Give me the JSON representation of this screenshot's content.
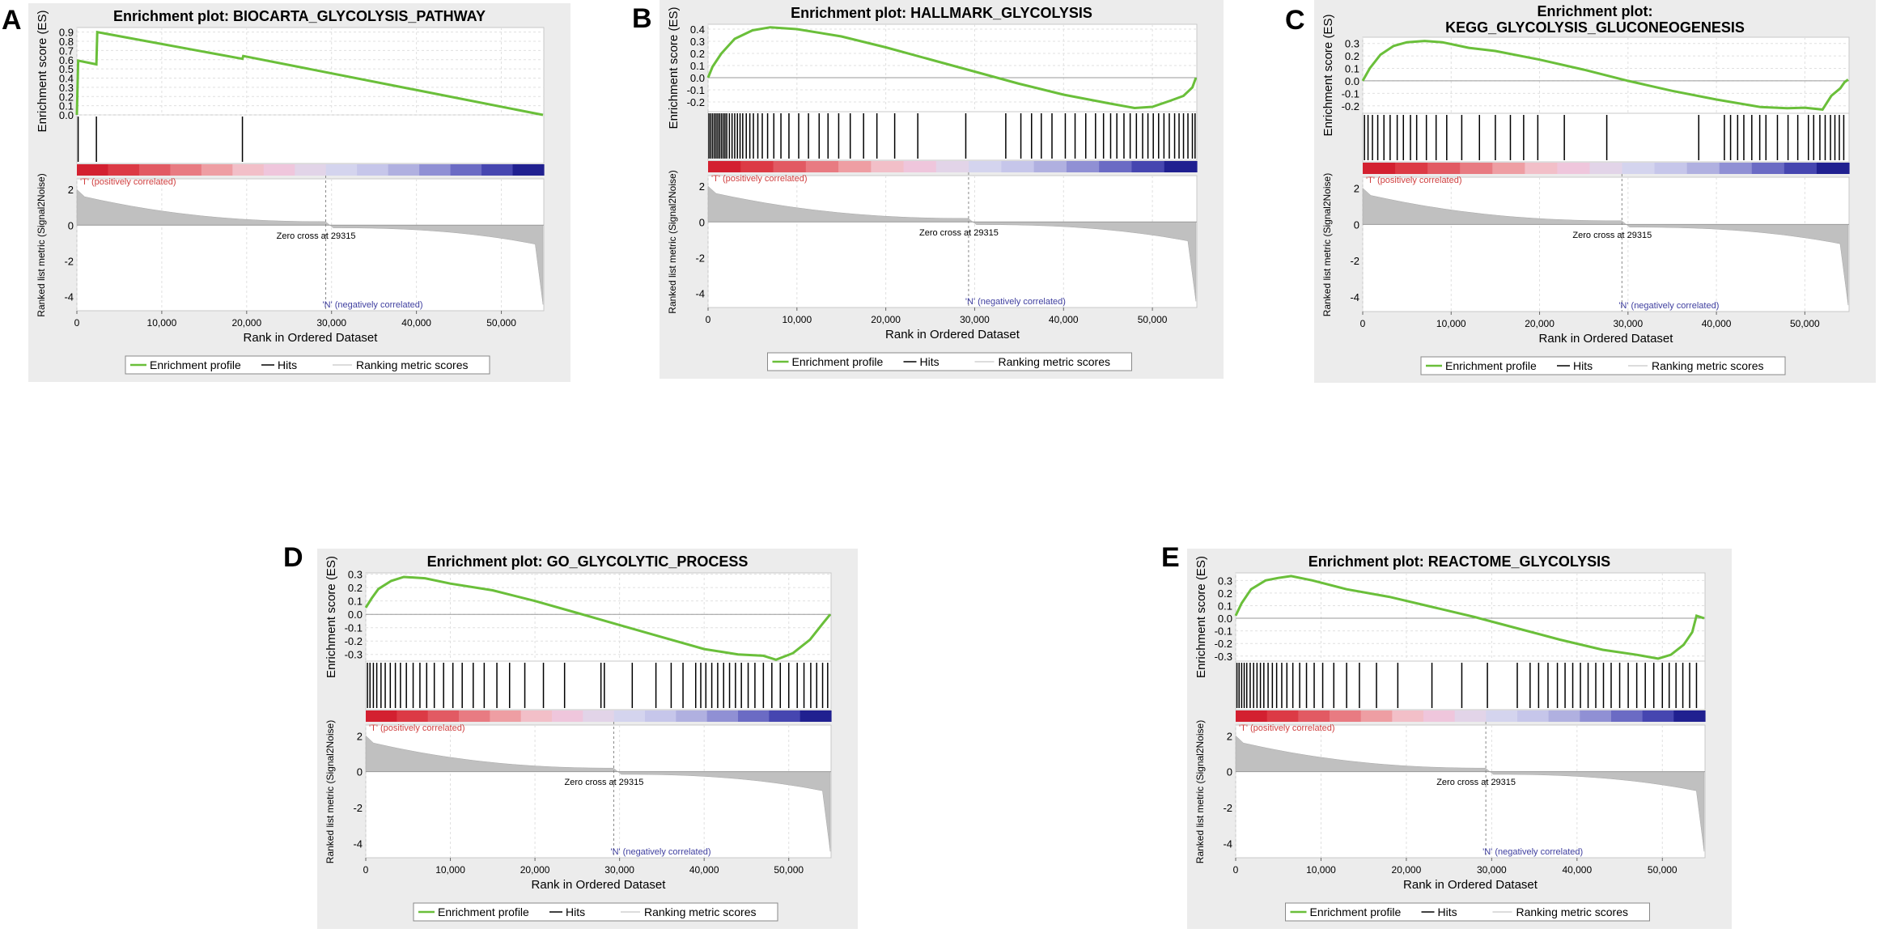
{
  "legend": {
    "profile": "Enrichment profile",
    "hits": "Hits",
    "ranking": "Ranking metric scores"
  },
  "labels": {
    "es_axis": "Enrichment score (ES)",
    "metric_axis": "Ranked list metric (Signal2Noise)",
    "rank_axis": "Rank in Ordered Dataset",
    "pos_corr": "'T' (positively correlated)",
    "neg_corr": "'N' (negatively correlated)",
    "zero_cross": "Zero cross at 29315"
  },
  "colors": {
    "profile": "#6abf3a",
    "hits": "#000000",
    "metric": "#c0c0c0"
  },
  "chart_data": [
    {
      "letter": "A",
      "type": "line",
      "title": "Enrichment plot: BIOCARTA_GLYCOLYSIS_PATHWAY",
      "xlabel": "Rank in Ordered Dataset",
      "ylabel": "Enrichment score (ES)",
      "xlim": [
        0,
        55000
      ],
      "ylim": [
        0,
        0.95
      ],
      "yticks": [
        0,
        0.1,
        0.2,
        0.3,
        0.4,
        0.5,
        0.6,
        0.7,
        0.8,
        0.9
      ],
      "ytick_labels": [
        "0.0",
        "0.1",
        "0.2",
        "0.3",
        "0.4",
        "0.5",
        "0.6",
        "0.7",
        "0.8",
        "0.9"
      ],
      "xticks": [
        0,
        10000,
        20000,
        30000,
        40000,
        50000
      ],
      "xtick_labels": [
        "0",
        "10,000",
        "20,000",
        "30,000",
        "40,000",
        "50,000"
      ],
      "metric_ticks": [
        2,
        0,
        -2,
        -4
      ],
      "metric_tick_labels": [
        "2",
        "0",
        "-2",
        "-4"
      ],
      "es_profile": [
        [
          0,
          0
        ],
        [
          150,
          0.59
        ],
        [
          2300,
          0.55
        ],
        [
          2400,
          0.9
        ],
        [
          19500,
          0.61
        ],
        [
          19600,
          0.64
        ],
        [
          54900,
          0
        ]
      ],
      "hits": [
        150,
        2300,
        19500
      ],
      "zero_cross": 29315
    },
    {
      "letter": "B",
      "type": "line",
      "title": "Enrichment plot: HALLMARK_GLYCOLYSIS",
      "xlabel": "Rank in Ordered Dataset",
      "ylabel": "Enrichment score (ES)",
      "xlim": [
        0,
        55000
      ],
      "ylim": [
        -0.28,
        0.44
      ],
      "yticks": [
        -0.2,
        -0.1,
        0,
        0.1,
        0.2,
        0.3,
        0.4
      ],
      "ytick_labels": [
        "-0.2",
        "-0.1",
        "0.0",
        "0.1",
        "0.2",
        "0.3",
        "0.4"
      ],
      "xticks": [
        0,
        10000,
        20000,
        30000,
        40000,
        50000
      ],
      "xtick_labels": [
        "0",
        "10,000",
        "20,000",
        "30,000",
        "40,000",
        "50,000"
      ],
      "metric_ticks": [
        2,
        0,
        -2,
        -4
      ],
      "metric_tick_labels": [
        "2",
        "0",
        "-2",
        "-4"
      ],
      "es_profile": [
        [
          0,
          0
        ],
        [
          500,
          0.09
        ],
        [
          1500,
          0.2
        ],
        [
          3000,
          0.32
        ],
        [
          5000,
          0.39
        ],
        [
          7000,
          0.415
        ],
        [
          10000,
          0.4
        ],
        [
          15000,
          0.34
        ],
        [
          20000,
          0.25
        ],
        [
          25000,
          0.15
        ],
        [
          30000,
          0.05
        ],
        [
          35000,
          -0.05
        ],
        [
          40000,
          -0.14
        ],
        [
          45000,
          -0.21
        ],
        [
          48000,
          -0.25
        ],
        [
          50000,
          -0.24
        ],
        [
          52000,
          -0.19
        ],
        [
          53500,
          -0.15
        ],
        [
          54500,
          -0.08
        ],
        [
          54900,
          0
        ]
      ],
      "hits": [
        100,
        300,
        500,
        700,
        900,
        1100,
        1300,
        1500,
        1700,
        1900,
        2100,
        2400,
        2700,
        3000,
        3300,
        3600,
        3900,
        4300,
        4700,
        5100,
        5600,
        6100,
        6700,
        7400,
        8200,
        9100,
        10200,
        11300,
        12500,
        13500,
        14700,
        16000,
        17500,
        19000,
        21000,
        23600,
        29000,
        33500,
        35200,
        36400,
        37500,
        38700,
        40200,
        41300,
        42500,
        43600,
        44500,
        45300,
        46000,
        46800,
        47500,
        48200,
        48900,
        49500,
        50100,
        50700,
        51300,
        51900,
        52500,
        53000,
        53500,
        54000,
        54500,
        54800
      ],
      "zero_cross": 29315
    },
    {
      "letter": "C",
      "type": "line",
      "title": "Enrichment plot: KEGG_GLYCOLYSIS_GLUCONEOGENESIS",
      "xlabel": "Rank in Ordered Dataset",
      "ylabel": "Enrichment score (ES)",
      "xlim": [
        0,
        55000
      ],
      "ylim": [
        -0.26,
        0.35
      ],
      "yticks": [
        -0.2,
        -0.1,
        0,
        0.1,
        0.2,
        0.3
      ],
      "ytick_labels": [
        "-0.2",
        "-0.1",
        "0.0",
        "0.1",
        "0.2",
        "0.3"
      ],
      "xticks": [
        0,
        10000,
        20000,
        30000,
        40000,
        50000
      ],
      "xtick_labels": [
        "0",
        "10,000",
        "20,000",
        "30,000",
        "40,000",
        "50,000"
      ],
      "metric_ticks": [
        2,
        0,
        -2,
        -4
      ],
      "metric_tick_labels": [
        "2",
        "0",
        "-2",
        "-4"
      ],
      "es_profile": [
        [
          0,
          0
        ],
        [
          800,
          0.1
        ],
        [
          2000,
          0.21
        ],
        [
          3500,
          0.28
        ],
        [
          5000,
          0.31
        ],
        [
          7000,
          0.32
        ],
        [
          9000,
          0.31
        ],
        [
          12000,
          0.265
        ],
        [
          15000,
          0.24
        ],
        [
          20000,
          0.17
        ],
        [
          25000,
          0.09
        ],
        [
          30000,
          0.0
        ],
        [
          35000,
          -0.08
        ],
        [
          40000,
          -0.15
        ],
        [
          45000,
          -0.21
        ],
        [
          48000,
          -0.22
        ],
        [
          50000,
          -0.215
        ],
        [
          52000,
          -0.23
        ],
        [
          53000,
          -0.12
        ],
        [
          54000,
          -0.06
        ],
        [
          54500,
          -0.01
        ],
        [
          54900,
          0.01
        ]
      ],
      "hits": [
        200,
        600,
        1100,
        1700,
        2400,
        3100,
        3900,
        4600,
        5400,
        6100,
        7200,
        8300,
        9500,
        11200,
        13200,
        15000,
        16700,
        18200,
        19800,
        22800,
        27600,
        38000,
        40900,
        41600,
        42400,
        43100,
        44000,
        44900,
        45600,
        46900,
        48100,
        49200,
        50400,
        51000,
        51700,
        52300,
        52900,
        53400,
        53900,
        54400
      ],
      "zero_cross": 29315
    },
    {
      "letter": "D",
      "type": "line",
      "title": "Enrichment plot: GO_GLYCOLYTIC_PROCESS",
      "xlabel": "Rank in Ordered Dataset",
      "ylabel": "Enrichment score (ES)",
      "xlim": [
        0,
        55000
      ],
      "ylim": [
        -0.35,
        0.31
      ],
      "yticks": [
        -0.3,
        -0.2,
        -0.1,
        0,
        0.1,
        0.2,
        0.3
      ],
      "ytick_labels": [
        "-0.3",
        "-0.2",
        "-0.1",
        "0.0",
        "0.1",
        "0.2",
        "0.3"
      ],
      "xticks": [
        0,
        10000,
        20000,
        30000,
        40000,
        50000
      ],
      "xtick_labels": [
        "0",
        "10,000",
        "20,000",
        "30,000",
        "40,000",
        "50,000"
      ],
      "metric_ticks": [
        2,
        0,
        -2,
        -4
      ],
      "metric_tick_labels": [
        "2",
        "0",
        "-2",
        "-4"
      ],
      "es_profile": [
        [
          0,
          0.05
        ],
        [
          700,
          0.12
        ],
        [
          1500,
          0.19
        ],
        [
          3000,
          0.25
        ],
        [
          4500,
          0.28
        ],
        [
          7000,
          0.27
        ],
        [
          10000,
          0.23
        ],
        [
          15000,
          0.18
        ],
        [
          20000,
          0.1
        ],
        [
          25000,
          0.01
        ],
        [
          30000,
          -0.08
        ],
        [
          35000,
          -0.17
        ],
        [
          40000,
          -0.26
        ],
        [
          44000,
          -0.3
        ],
        [
          47000,
          -0.31
        ],
        [
          48500,
          -0.34
        ],
        [
          50500,
          -0.29
        ],
        [
          52500,
          -0.19
        ],
        [
          54000,
          -0.07
        ],
        [
          54900,
          0.0
        ]
      ],
      "hits": [
        200,
        500,
        900,
        1300,
        1800,
        2300,
        2900,
        3500,
        4100,
        4800,
        5600,
        6400,
        7200,
        8100,
        9200,
        10300,
        11400,
        12700,
        14000,
        15500,
        17000,
        18800,
        21000,
        23500,
        27800,
        28200,
        31500,
        34300,
        36100,
        37500,
        39000,
        39600,
        40200,
        40900,
        41600,
        42300,
        43000,
        43700,
        44400,
        45200,
        46000,
        47000,
        48000,
        49000,
        50000,
        51000,
        51800,
        52600,
        53300,
        54000,
        54600
      ],
      "zero_cross": 29315
    },
    {
      "letter": "E",
      "type": "line",
      "title": "Enrichment plot: REACTOME_GLYCOLYSIS",
      "xlabel": "Rank in Ordered Dataset",
      "ylabel": "Enrichment score (ES)",
      "xlim": [
        0,
        55000
      ],
      "ylim": [
        -0.34,
        0.36
      ],
      "yticks": [
        -0.3,
        -0.2,
        -0.1,
        0,
        0.1,
        0.2,
        0.3
      ],
      "ytick_labels": [
        "-0.3",
        "-0.2",
        "-0.1",
        "0.0",
        "0.1",
        "0.2",
        "0.3"
      ],
      "xticks": [
        0,
        10000,
        20000,
        30000,
        40000,
        50000
      ],
      "xtick_labels": [
        "0",
        "10,000",
        "20,000",
        "30,000",
        "40,000",
        "50,000"
      ],
      "metric_ticks": [
        2,
        0,
        -2,
        -4
      ],
      "metric_tick_labels": [
        "2",
        "0",
        "-2",
        "-4"
      ],
      "es_profile": [
        [
          0,
          0.02
        ],
        [
          700,
          0.12
        ],
        [
          1800,
          0.23
        ],
        [
          3500,
          0.3
        ],
        [
          5000,
          0.32
        ],
        [
          6500,
          0.335
        ],
        [
          9000,
          0.3
        ],
        [
          13000,
          0.23
        ],
        [
          18000,
          0.17
        ],
        [
          23000,
          0.09
        ],
        [
          28000,
          0.01
        ],
        [
          33000,
          -0.08
        ],
        [
          38000,
          -0.17
        ],
        [
          43000,
          -0.25
        ],
        [
          47000,
          -0.29
        ],
        [
          49500,
          -0.32
        ],
        [
          51000,
          -0.29
        ],
        [
          52500,
          -0.21
        ],
        [
          53500,
          -0.11
        ],
        [
          54000,
          0.02
        ],
        [
          54900,
          0.0
        ]
      ],
      "hits": [
        150,
        400,
        700,
        1000,
        1300,
        1700,
        2100,
        2500,
        2900,
        3300,
        3800,
        4300,
        4800,
        5400,
        6000,
        6700,
        7500,
        8300,
        9200,
        10200,
        11500,
        13000,
        14500,
        16500,
        19000,
        23000,
        26500,
        29500,
        33000,
        34500,
        35500,
        36600,
        37700,
        38600,
        39500,
        40400,
        41300,
        42200,
        43100,
        44000,
        45000,
        46000,
        47000,
        48000,
        49000,
        50000,
        50800,
        51600,
        52400,
        53200,
        54000
      ],
      "zero_cross": 29315
    }
  ]
}
